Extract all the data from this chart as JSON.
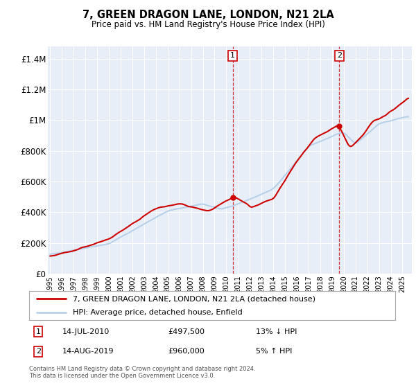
{
  "title": "7, GREEN DRAGON LANE, LONDON, N21 2LA",
  "subtitle": "Price paid vs. HM Land Registry's House Price Index (HPI)",
  "ytick_values": [
    0,
    200000,
    400000,
    600000,
    800000,
    1000000,
    1200000,
    1400000
  ],
  "ylim": [
    0,
    1480000
  ],
  "xlim_start": 1994.8,
  "xlim_end": 2025.8,
  "transaction1_date": 2010.54,
  "transaction1_price": 497500,
  "transaction2_date": 2019.62,
  "transaction2_price": 960000,
  "legend_line1": "7, GREEN DRAGON LANE, LONDON, N21 2LA (detached house)",
  "legend_line2": "HPI: Average price, detached house, Enfield",
  "ann1_date": "14-JUL-2010",
  "ann1_price": "£497,500",
  "ann1_pct": "13% ↓ HPI",
  "ann2_date": "14-AUG-2019",
  "ann2_price": "£960,000",
  "ann2_pct": "5% ↑ HPI",
  "footnote": "Contains HM Land Registry data © Crown copyright and database right 2024.\nThis data is licensed under the Open Government Licence v3.0.",
  "hpi_color": "#b8d0e8",
  "price_color": "#cc0000",
  "background_plot": "#e8eef8",
  "background_fig": "#ffffff",
  "grid_color": "#ffffff",
  "dashed_color": "#cc0000"
}
